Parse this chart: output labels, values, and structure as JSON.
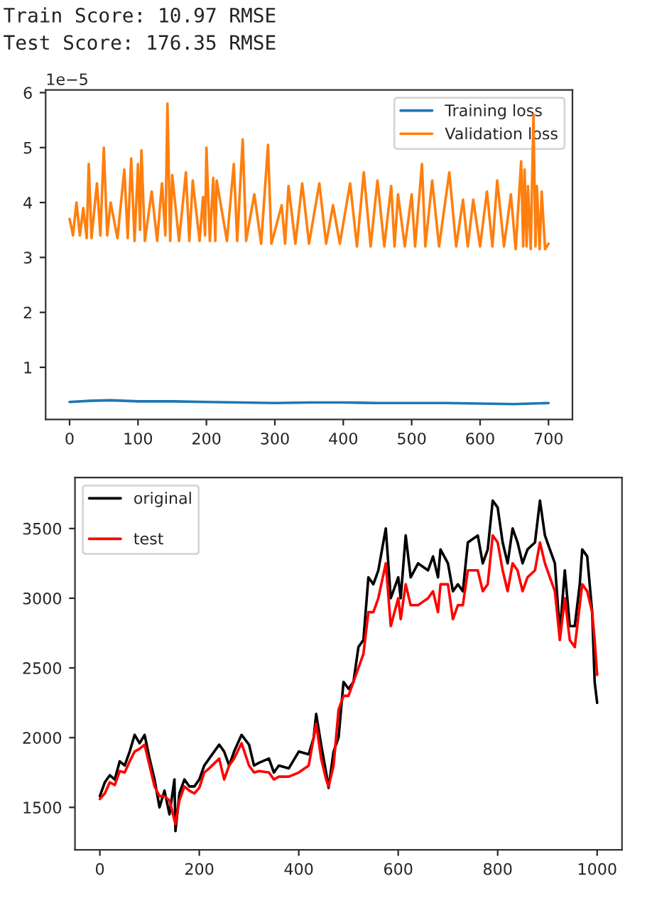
{
  "chart_data": [
    {
      "type": "line",
      "annotations": [
        "Train Score: 10.97 RMSE",
        "Test Score: 176.35 RMSE",
        "1e−5"
      ],
      "xlim": [
        -35,
        735
      ],
      "ylim": [
        0.05,
        6.05
      ],
      "xticks": [
        0,
        100,
        200,
        300,
        400,
        500,
        600,
        700
      ],
      "yticks": [
        1,
        2,
        3,
        4,
        5,
        6
      ],
      "grid": false,
      "legend": "top right",
      "series": [
        {
          "name": "Training loss",
          "color": "#1f77b4",
          "x": [
            0,
            30,
            60,
            100,
            150,
            200,
            250,
            300,
            350,
            400,
            450,
            500,
            550,
            600,
            650,
            700
          ],
          "values": [
            0.37,
            0.39,
            0.4,
            0.38,
            0.38,
            0.37,
            0.36,
            0.35,
            0.36,
            0.36,
            0.35,
            0.35,
            0.35,
            0.34,
            0.33,
            0.35
          ]
        },
        {
          "name": "Validation loss",
          "color": "#ff7f0e",
          "x": [
            0,
            5,
            10,
            15,
            20,
            25,
            28,
            32,
            40,
            45,
            50,
            55,
            60,
            70,
            80,
            85,
            90,
            95,
            100,
            103,
            105,
            110,
            120,
            128,
            135,
            140,
            143,
            147,
            150,
            160,
            170,
            175,
            180,
            190,
            195,
            198,
            200,
            205,
            210,
            213,
            215,
            230,
            240,
            245,
            253,
            258,
            270,
            280,
            290,
            295,
            310,
            315,
            320,
            330,
            340,
            350,
            365,
            375,
            385,
            395,
            410,
            420,
            430,
            440,
            450,
            460,
            470,
            475,
            480,
            490,
            500,
            505,
            515,
            520,
            530,
            540,
            555,
            565,
            575,
            582,
            590,
            600,
            610,
            618,
            625,
            635,
            645,
            652,
            660,
            663,
            665,
            668,
            670,
            674,
            678,
            681,
            683,
            687,
            690,
            695,
            700
          ],
          "values": [
            3.7,
            3.4,
            4.0,
            3.4,
            3.9,
            3.35,
            4.7,
            3.35,
            4.35,
            3.4,
            5.0,
            3.4,
            4.0,
            3.35,
            4.6,
            3.35,
            4.8,
            3.3,
            4.7,
            3.5,
            4.95,
            3.3,
            4.2,
            3.3,
            4.35,
            3.4,
            5.8,
            3.3,
            4.5,
            3.3,
            4.55,
            3.3,
            4.4,
            3.3,
            4.1,
            3.4,
            5.0,
            3.3,
            4.45,
            3.3,
            4.4,
            3.3,
            4.7,
            3.3,
            5.15,
            3.3,
            4.15,
            3.25,
            5.05,
            3.25,
            3.95,
            3.25,
            4.3,
            3.25,
            4.35,
            3.25,
            4.35,
            3.25,
            3.95,
            3.25,
            4.35,
            3.2,
            4.55,
            3.2,
            4.4,
            3.2,
            4.3,
            3.2,
            4.15,
            3.2,
            4.15,
            3.2,
            4.7,
            3.2,
            4.4,
            3.2,
            4.55,
            3.2,
            4.05,
            3.2,
            4.05,
            3.2,
            4.2,
            3.2,
            4.4,
            3.2,
            4.15,
            3.15,
            4.75,
            3.2,
            4.6,
            3.2,
            4.3,
            3.15,
            5.6,
            3.2,
            4.3,
            3.15,
            4.2,
            3.15,
            3.25
          ]
        }
      ]
    },
    {
      "type": "line",
      "xlim": [
        -50,
        1050
      ],
      "ylim": [
        1195,
        3865
      ],
      "xticks": [
        0,
        200,
        400,
        600,
        800,
        1000
      ],
      "yticks": [
        1500,
        2000,
        2500,
        3000,
        3500
      ],
      "grid": false,
      "legend": "top left",
      "series": [
        {
          "name": "original",
          "color": "#000000",
          "x": [
            0,
            10,
            20,
            30,
            40,
            50,
            60,
            70,
            80,
            90,
            100,
            110,
            120,
            130,
            140,
            150,
            152,
            160,
            170,
            180,
            190,
            200,
            210,
            220,
            240,
            250,
            260,
            270,
            285,
            300,
            310,
            320,
            340,
            350,
            360,
            380,
            400,
            420,
            430,
            435,
            445,
            455,
            460,
            470,
            480,
            490,
            500,
            510,
            520,
            530,
            540,
            550,
            560,
            575,
            585,
            600,
            605,
            615,
            625,
            640,
            660,
            670,
            680,
            685,
            700,
            710,
            720,
            730,
            740,
            760,
            770,
            780,
            790,
            800,
            810,
            820,
            830,
            840,
            850,
            860,
            875,
            885,
            895,
            905,
            915,
            925,
            935,
            945,
            955,
            965,
            970,
            980,
            990,
            995,
            1000
          ],
          "values": [
            1580,
            1680,
            1730,
            1700,
            1830,
            1800,
            1900,
            2020,
            1960,
            2020,
            1850,
            1700,
            1500,
            1620,
            1450,
            1700,
            1330,
            1600,
            1700,
            1650,
            1650,
            1700,
            1800,
            1850,
            1950,
            1900,
            1800,
            1900,
            2020,
            1950,
            1800,
            1820,
            1850,
            1750,
            1800,
            1780,
            1900,
            1880,
            2000,
            2170,
            1950,
            1750,
            1640,
            1900,
            2000,
            2400,
            2350,
            2400,
            2650,
            2700,
            3150,
            3100,
            3200,
            3500,
            3000,
            3150,
            3000,
            3450,
            3150,
            3250,
            3200,
            3300,
            3150,
            3350,
            3250,
            3050,
            3100,
            3050,
            3400,
            3450,
            3250,
            3350,
            3700,
            3650,
            3400,
            3250,
            3500,
            3400,
            3250,
            3350,
            3400,
            3700,
            3450,
            3350,
            3250,
            2750,
            3200,
            2800,
            2800,
            3100,
            3350,
            3300,
            2900,
            2400,
            2250
          ]
        },
        {
          "name": "test",
          "color": "#ff0000",
          "x": [
            0,
            10,
            20,
            30,
            40,
            50,
            60,
            70,
            80,
            90,
            100,
            110,
            120,
            130,
            140,
            152,
            160,
            170,
            180,
            190,
            200,
            210,
            220,
            240,
            250,
            260,
            270,
            285,
            300,
            310,
            320,
            340,
            350,
            360,
            380,
            400,
            420,
            435,
            445,
            455,
            460,
            470,
            480,
            490,
            500,
            510,
            520,
            530,
            540,
            550,
            560,
            575,
            585,
            600,
            605,
            615,
            625,
            640,
            660,
            670,
            680,
            685,
            700,
            710,
            720,
            730,
            740,
            760,
            770,
            780,
            790,
            800,
            810,
            820,
            830,
            840,
            850,
            860,
            875,
            885,
            895,
            905,
            915,
            925,
            935,
            945,
            955,
            965,
            970,
            980,
            990,
            995,
            1000
          ],
          "values": [
            1560,
            1600,
            1680,
            1660,
            1760,
            1750,
            1830,
            1900,
            1920,
            1950,
            1800,
            1650,
            1580,
            1580,
            1550,
            1380,
            1550,
            1650,
            1620,
            1600,
            1640,
            1750,
            1780,
            1850,
            1700,
            1800,
            1850,
            1960,
            1800,
            1750,
            1760,
            1750,
            1700,
            1720,
            1720,
            1750,
            1800,
            2100,
            1850,
            1700,
            1650,
            1800,
            2200,
            2300,
            2300,
            2400,
            2500,
            2600,
            2900,
            2900,
            3000,
            3250,
            2800,
            3000,
            2850,
            3100,
            2950,
            2950,
            3000,
            3050,
            2900,
            3100,
            3100,
            2850,
            2950,
            2950,
            3200,
            3200,
            3050,
            3100,
            3450,
            3400,
            3200,
            3050,
            3250,
            3200,
            3050,
            3150,
            3200,
            3400,
            3250,
            3150,
            3050,
            2700,
            3000,
            2700,
            2650,
            2950,
            3100,
            3050,
            2900,
            2700,
            2450
          ]
        }
      ]
    }
  ]
}
